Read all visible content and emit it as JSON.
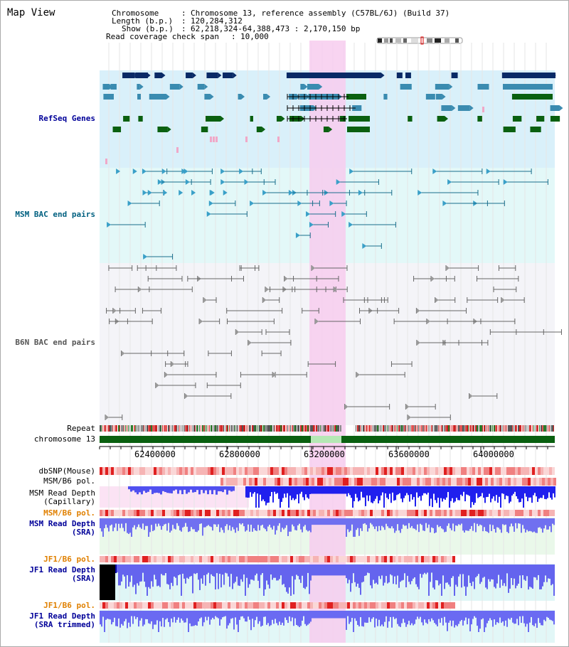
{
  "title": "Map View",
  "header": {
    "chromosome_key": "Chromosome",
    "chromosome_value": "Chromosome 13, reference assembly (C57BL/6J) (Build 37)",
    "length_key": "Length (b.p.)",
    "length_value": "120,284,312",
    "show_key": "Show (b.p.)",
    "show_value": "62,218,324-64,388,473 : 2,170,150 bp",
    "coverage_key": "Read coverage check span",
    "coverage_value": "10,000"
  },
  "tracks": {
    "refseq": "RefSeq Genes",
    "msm_bac": "MSM BAC end pairs",
    "b6n_bac": "B6N BAC end pairs",
    "repeat": "Repeat",
    "chromosome": "chromosome 13",
    "dbsnp": "dbSNP(Mouse)",
    "msm_b6_pol1": "MSM/B6 pol.",
    "msm_depth_cap_1": "MSM Read Depth",
    "msm_depth_cap_2": "(Capillary)",
    "msm_b6_pol2": "MSM/B6 pol.",
    "msm_depth_sra_1": "MSM Read Depth",
    "msm_depth_sra_2": "(SRA)",
    "jf1_b6_pol1": "JF1/B6 pol.",
    "jf1_depth_sra_1": "JF1 Read Depth",
    "jf1_depth_sra_2": "(SRA)",
    "jf1_b6_pol2": "JF1/B6 pol.",
    "jf1_depth_trim_1": "JF1 Read Depth",
    "jf1_depth_trim_2": "(SRA trimmed)"
  },
  "axis": {
    "ticks": [
      "62400000",
      "62800000",
      "63200000",
      "63600000",
      "64000000"
    ]
  },
  "colors": {
    "refseq_label": "#000099",
    "msm_label": "#006080",
    "b6n_label": "#555555",
    "pol_label": "#e08000",
    "depth_label": "#000099",
    "highlight": "#f5c8ec"
  }
}
